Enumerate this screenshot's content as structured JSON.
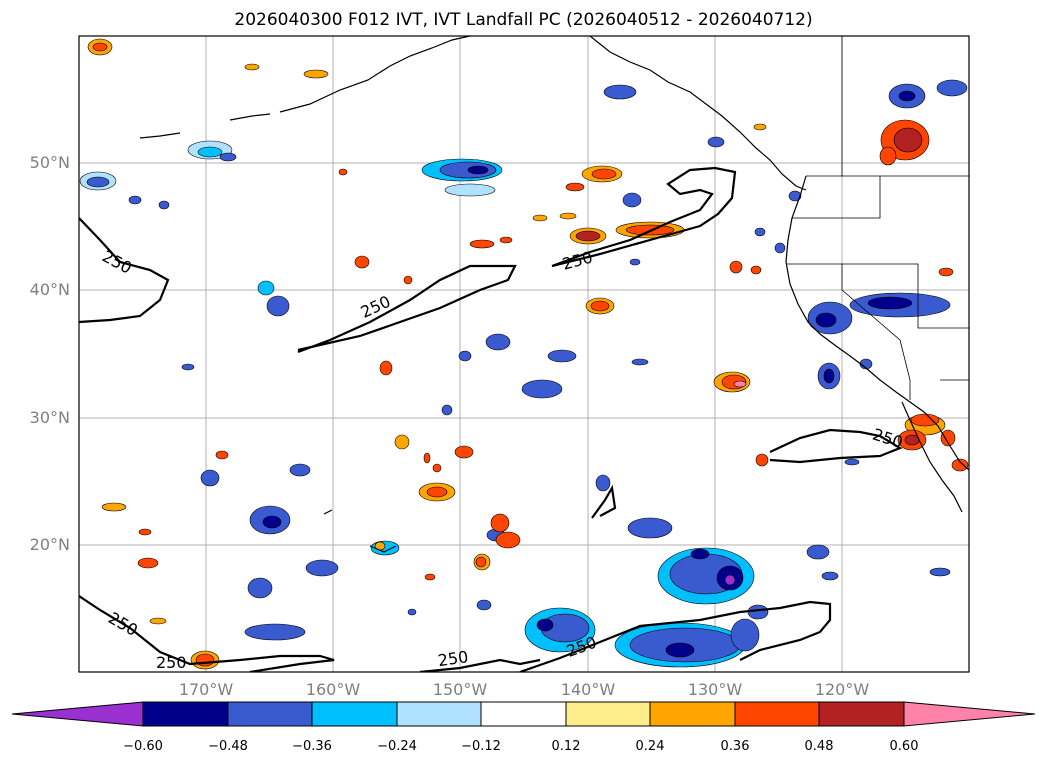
{
  "title": "2026040300 F012 IVT, IVT Landfall PC (2026040512 - 2026040712)",
  "lat_labels": [
    "50°N",
    "40°N",
    "30°N",
    "20°N"
  ],
  "lon_labels": [
    "170°W",
    "160°W",
    "150°W",
    "140°W",
    "130°W",
    "120°W"
  ],
  "contour_labels": [
    "250",
    "250",
    "250",
    "250",
    "250",
    "250",
    "250"
  ],
  "colorbar": {
    "tick_labels": [
      "−0.60",
      "−0.48",
      "−0.36",
      "−0.24",
      "−0.12",
      "0.12",
      "0.24",
      "0.36",
      "0.48",
      "0.60"
    ],
    "colors": [
      "#9b30d0",
      "#00008b",
      "#3a5bd0",
      "#00bfff",
      "#b0e2ff",
      "#ffffff",
      "#ffec8b",
      "#ffa500",
      "#ff4500",
      "#b22222",
      "#ff82ab"
    ]
  }
}
